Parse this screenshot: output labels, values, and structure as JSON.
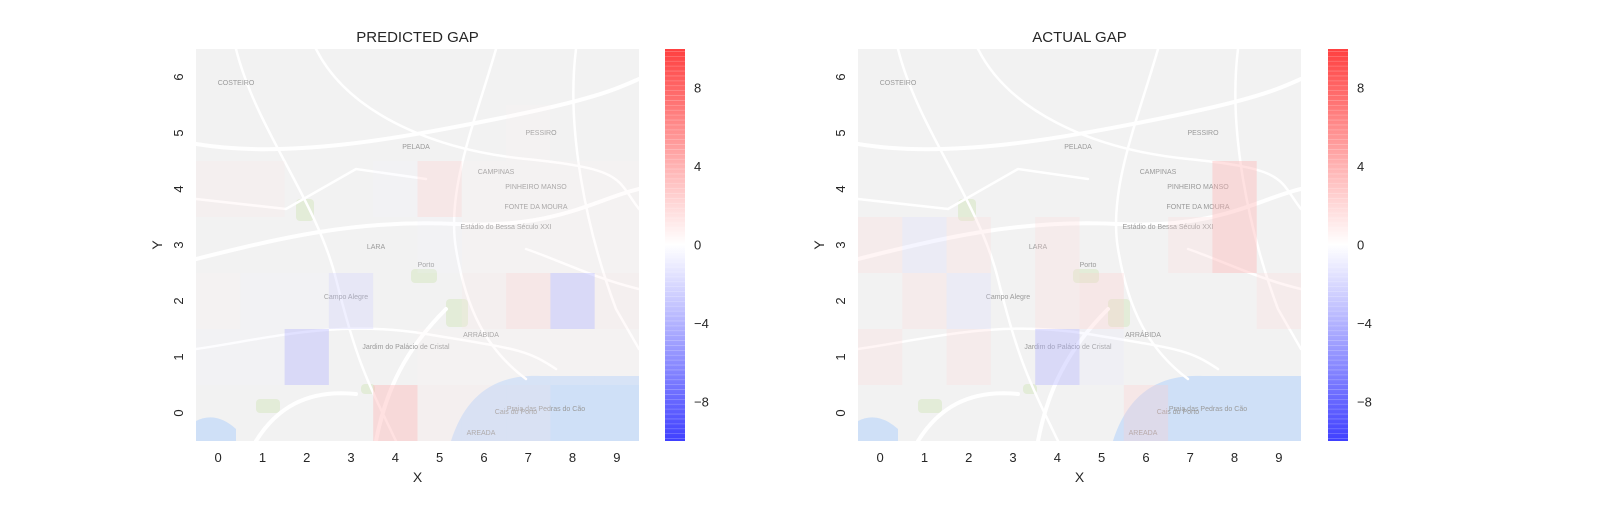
{
  "colorbar": {
    "ticks": [
      8,
      4,
      0,
      -4,
      -8
    ],
    "tick_labels": [
      "8",
      "4",
      "0",
      "−4",
      "−8"
    ],
    "range": [
      -10,
      10
    ],
    "colors": {
      "negative": "#0000ff",
      "zero": "#ffffff",
      "positive": "#ff0000"
    }
  },
  "map_background": {
    "tone": "#f2f2f2",
    "water": "#cfe0f7",
    "roads": "#ffffff"
  },
  "map_labels": [
    "COSTEIRO",
    "PESSIRO",
    "PELADA",
    "CAMPINAS",
    "PINHEIRO MANSO",
    "FONTE DA MOURA",
    "LARA",
    "Porto",
    "Campo Alegre",
    "ARRÁBIDA",
    "Jardim do Palácio de Cristal",
    "Cais do Porto",
    "Praia das Pedras do Cão",
    "AREADA",
    "Estádio do Bessa Século XXI"
  ],
  "chart_data": [
    {
      "type": "heatmap",
      "title": "PREDICTED GAP",
      "xlabel": "X",
      "ylabel": "Y",
      "x_categories": [
        "0",
        "1",
        "2",
        "3",
        "4",
        "5",
        "6",
        "7",
        "8",
        "9"
      ],
      "y_categories": [
        "0",
        "1",
        "2",
        "3",
        "4",
        "5",
        "6"
      ],
      "vmin": -10,
      "vmax": 10,
      "grid": false,
      "cells": [
        [
          0,
          0,
          0,
          0,
          3,
          1,
          1,
          1,
          0,
          0
        ],
        [
          -0.5,
          -0.5,
          -3,
          0,
          0,
          0.5,
          0.5,
          0.5,
          0.5,
          0.5
        ],
        [
          0.5,
          -0.5,
          -0.5,
          -2,
          0,
          0,
          1,
          2,
          -3,
          1
        ],
        [
          0,
          0,
          0,
          0,
          0,
          -0.5,
          0.5,
          0.5,
          0.5,
          0.5
        ],
        [
          1,
          1,
          0,
          0,
          -0.5,
          2,
          0.5,
          0.5,
          0.5,
          0.5
        ],
        [
          0,
          0,
          0,
          0,
          0,
          0,
          0,
          0.5,
          0,
          0
        ],
        [
          0,
          0,
          0,
          0,
          0,
          0,
          0,
          0,
          0,
          0
        ]
      ]
    },
    {
      "type": "heatmap",
      "title": "ACTUAL GAP",
      "xlabel": "X",
      "ylabel": "Y",
      "x_categories": [
        "0",
        "1",
        "2",
        "3",
        "4",
        "5",
        "6",
        "7",
        "8",
        "9"
      ],
      "y_categories": [
        "0",
        "1",
        "2",
        "3",
        "4",
        "5",
        "6"
      ],
      "vmin": -10,
      "vmax": 10,
      "grid": false,
      "cells": [
        [
          0,
          0,
          0,
          0,
          0,
          0,
          2,
          0,
          0,
          0
        ],
        [
          1.5,
          0,
          1.5,
          0,
          -3,
          -1,
          0,
          0,
          0,
          0
        ],
        [
          0,
          1.5,
          -1.5,
          0,
          1.5,
          2,
          0,
          0,
          0,
          1.5
        ],
        [
          1.5,
          -1.5,
          1.5,
          0,
          1.5,
          0,
          0,
          1.5,
          3,
          0
        ],
        [
          0,
          0,
          0,
          0,
          0,
          0,
          0,
          0,
          3,
          0
        ],
        [
          0,
          0,
          0,
          0,
          0,
          0,
          0,
          0,
          0,
          0
        ],
        [
          0,
          0,
          0,
          0,
          0,
          0,
          0,
          0,
          0,
          0
        ]
      ]
    }
  ]
}
